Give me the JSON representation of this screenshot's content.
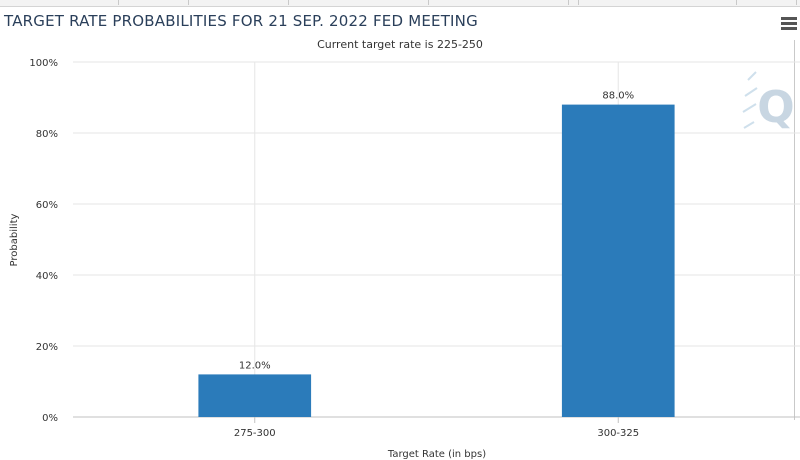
{
  "header": {
    "title": "TARGET RATE PROBABILITIES FOR 21 SEP. 2022 FED MEETING",
    "subtitle": "Current target rate is 225-250"
  },
  "watermark": {
    "text": "Q",
    "color": "#c8d6e2"
  },
  "menu": {
    "icon": "hamburger-menu-icon"
  },
  "colors": {
    "bar": "#2b7bba",
    "grid": "#e6e6e6",
    "axis": "#c0c0c0",
    "text": "#333333"
  },
  "chart_data": {
    "type": "bar",
    "title": "TARGET RATE PROBABILITIES FOR 21 SEP. 2022 FED MEETING",
    "subtitle": "Current target rate is 225-250",
    "categories": [
      "275-300",
      "300-325"
    ],
    "values": [
      12.0,
      88.0
    ],
    "data_labels": [
      "12.0%",
      "88.0%"
    ],
    "xlabel": "Target Rate (in bps)",
    "ylabel": "Probability",
    "ylim": [
      0,
      100
    ],
    "yticks": [
      0,
      20,
      40,
      60,
      80,
      100
    ],
    "ytick_labels": [
      "0%",
      "20%",
      "40%",
      "60%",
      "80%",
      "100%"
    ],
    "grid": true,
    "legend": "none"
  }
}
